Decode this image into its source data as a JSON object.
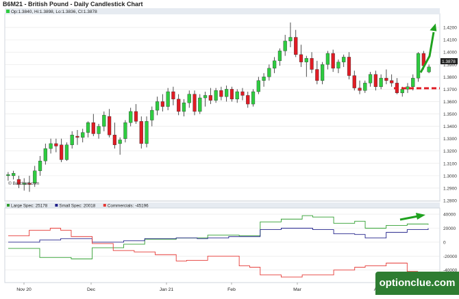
{
  "window": {
    "title": "B6M21 - British Pound - Daily Candlestick Chart"
  },
  "price_legend": "Op:1.3840, Hi:1.3898, Lo:1.3836, Cl:1.3878",
  "source_label": "© Barchart.com",
  "cot_legend": [
    {
      "label": "Large Spec: 25178",
      "color": "#2e9e2e"
    },
    {
      "label": "Small Spec: 20018",
      "color": "#20208a"
    },
    {
      "label": "Commercials: -45196",
      "color": "#e53935"
    }
  ],
  "last_price_tag": "1.3878",
  "x_axis_labels": [
    "Nov 20",
    "Dec",
    "Jan 21",
    "Feb",
    "Mar",
    "Apr"
  ],
  "watermark": "optionclue.com",
  "colors": {
    "up": "#2ecc40",
    "down": "#e01b24",
    "annotation_arrow": "#1fa21f",
    "support_line": "#e01b24"
  },
  "chart_data": [
    {
      "type": "candlestick",
      "title": "B6M21 - British Pound - Daily Candlestick Chart",
      "ylim": [
        1.28,
        1.43
      ],
      "y_ticks": [
        "1.4200",
        "1.4100",
        "1.4000",
        "1.3900",
        "1.3800",
        "1.3700",
        "1.3600",
        "1.3500",
        "1.3400",
        "1.3300",
        "1.3200",
        "1.3100",
        "1.3000",
        "1.2900",
        "1.2800"
      ],
      "last": {
        "open": 1.384,
        "high": 1.3898,
        "low": 1.3836,
        "close": 1.3878
      },
      "candles": [
        [
          1.3,
          1.303,
          1.296,
          1.301
        ],
        [
          1.3,
          1.304,
          1.297,
          1.302
        ],
        [
          1.297,
          1.3,
          1.29,
          1.293
        ],
        [
          1.293,
          1.298,
          1.288,
          1.294
        ],
        [
          1.294,
          1.3,
          1.287,
          1.293
        ],
        [
          1.294,
          1.308,
          1.291,
          1.304
        ],
        [
          1.304,
          1.316,
          1.3,
          1.312
        ],
        [
          1.312,
          1.326,
          1.309,
          1.322
        ],
        [
          1.322,
          1.33,
          1.318,
          1.326
        ],
        [
          1.326,
          1.33,
          1.319,
          1.324
        ],
        [
          1.325,
          1.33,
          1.311,
          1.313
        ],
        [
          1.313,
          1.327,
          1.312,
          1.325
        ],
        [
          1.325,
          1.336,
          1.322,
          1.333
        ],
        [
          1.332,
          1.337,
          1.325,
          1.331
        ],
        [
          1.331,
          1.338,
          1.327,
          1.335
        ],
        [
          1.335,
          1.344,
          1.331,
          1.343
        ],
        [
          1.343,
          1.35,
          1.332,
          1.334
        ],
        [
          1.334,
          1.342,
          1.33,
          1.34
        ],
        [
          1.34,
          1.352,
          1.336,
          1.349
        ],
        [
          1.348,
          1.354,
          1.331,
          1.333
        ],
        [
          1.333,
          1.343,
          1.322,
          1.325
        ],
        [
          1.326,
          1.331,
          1.317,
          1.329
        ],
        [
          1.33,
          1.345,
          1.327,
          1.343
        ],
        [
          1.343,
          1.355,
          1.34,
          1.352
        ],
        [
          1.352,
          1.358,
          1.342,
          1.344
        ],
        [
          1.344,
          1.348,
          1.322,
          1.326
        ],
        [
          1.326,
          1.348,
          1.323,
          1.344
        ],
        [
          1.345,
          1.356,
          1.34,
          1.353
        ],
        [
          1.353,
          1.364,
          1.349,
          1.36
        ],
        [
          1.36,
          1.366,
          1.352,
          1.356
        ],
        [
          1.356,
          1.371,
          1.353,
          1.368
        ],
        [
          1.368,
          1.372,
          1.357,
          1.362
        ],
        [
          1.362,
          1.366,
          1.349,
          1.352
        ],
        [
          1.352,
          1.362,
          1.348,
          1.359
        ],
        [
          1.359,
          1.369,
          1.355,
          1.366
        ],
        [
          1.366,
          1.369,
          1.349,
          1.352
        ],
        [
          1.352,
          1.366,
          1.35,
          1.363
        ],
        [
          1.363,
          1.368,
          1.356,
          1.365
        ],
        [
          1.365,
          1.371,
          1.358,
          1.361
        ],
        [
          1.361,
          1.371,
          1.359,
          1.369
        ],
        [
          1.369,
          1.372,
          1.361,
          1.364
        ],
        [
          1.364,
          1.373,
          1.36,
          1.37
        ],
        [
          1.37,
          1.372,
          1.36,
          1.362
        ],
        [
          1.362,
          1.37,
          1.359,
          1.368
        ],
        [
          1.368,
          1.371,
          1.361,
          1.365
        ],
        [
          1.365,
          1.368,
          1.355,
          1.358
        ],
        [
          1.358,
          1.37,
          1.356,
          1.368
        ],
        [
          1.368,
          1.38,
          1.366,
          1.377
        ],
        [
          1.377,
          1.383,
          1.372,
          1.38
        ],
        [
          1.38,
          1.39,
          1.377,
          1.387
        ],
        [
          1.387,
          1.396,
          1.383,
          1.393
        ],
        [
          1.393,
          1.403,
          1.389,
          1.401
        ],
        [
          1.401,
          1.414,
          1.397,
          1.409
        ],
        [
          1.409,
          1.424,
          1.404,
          1.412
        ],
        [
          1.412,
          1.418,
          1.396,
          1.398
        ],
        [
          1.398,
          1.406,
          1.388,
          1.392
        ],
        [
          1.392,
          1.397,
          1.38,
          1.395
        ],
        [
          1.395,
          1.4,
          1.383,
          1.386
        ],
        [
          1.386,
          1.393,
          1.374,
          1.377
        ],
        [
          1.377,
          1.392,
          1.374,
          1.39
        ],
        [
          1.39,
          1.401,
          1.386,
          1.399
        ],
        [
          1.399,
          1.402,
          1.384,
          1.387
        ],
        [
          1.387,
          1.394,
          1.383,
          1.392
        ],
        [
          1.392,
          1.398,
          1.388,
          1.396
        ],
        [
          1.396,
          1.4,
          1.378,
          1.381
        ],
        [
          1.381,
          1.385,
          1.369,
          1.371
        ],
        [
          1.371,
          1.377,
          1.366,
          1.369
        ],
        [
          1.369,
          1.377,
          1.367,
          1.375
        ],
        [
          1.375,
          1.384,
          1.372,
          1.382
        ],
        [
          1.382,
          1.385,
          1.369,
          1.372
        ],
        [
          1.372,
          1.382,
          1.37,
          1.379
        ],
        [
          1.379,
          1.386,
          1.374,
          1.377
        ],
        [
          1.377,
          1.382,
          1.372,
          1.375
        ],
        [
          1.375,
          1.379,
          1.366,
          1.367
        ],
        [
          1.367,
          1.372,
          1.364,
          1.37
        ],
        [
          1.37,
          1.375,
          1.367,
          1.372
        ],
        [
          1.372,
          1.382,
          1.369,
          1.379
        ],
        [
          1.379,
          1.4,
          1.376,
          1.399
        ],
        [
          1.399,
          1.401,
          1.386,
          1.389
        ],
        [
          1.384,
          1.39,
          1.383,
          1.388
        ]
      ]
    },
    {
      "type": "line",
      "ylabel": "",
      "ylim": [
        -55000,
        45000
      ],
      "y_ticks": [
        "40000",
        "20000",
        "0",
        "-20000",
        "-40000"
      ],
      "series": [
        {
          "name": "Large Spec",
          "color": "#2e9e2e",
          "values": [
            -9000,
            -9000,
            -9000,
            -22000,
            -22000,
            -22000,
            -24000,
            -24000,
            -8000,
            -8000,
            -8000,
            -3000,
            -3000,
            4000,
            4000,
            4000,
            6000,
            6000,
            6000,
            10000,
            10000,
            10000,
            9000,
            9000,
            29000,
            29000,
            33000,
            33000,
            38000,
            36000,
            36000,
            27000,
            27000,
            30000,
            20000,
            20000,
            24000,
            24000,
            26000,
            26000,
            25000
          ]
        },
        {
          "name": "Small Spec",
          "color": "#20208a",
          "values": [
            0,
            0,
            0,
            3000,
            3000,
            5000,
            5000,
            5000,
            0,
            0,
            0,
            2000,
            2000,
            5000,
            5000,
            5000,
            6000,
            6000,
            5000,
            6000,
            6000,
            8000,
            8000,
            8000,
            18000,
            18000,
            20000,
            20000,
            20000,
            18000,
            18000,
            12000,
            12000,
            11000,
            6000,
            6000,
            14000,
            14000,
            18000,
            18000,
            20000
          ]
        },
        {
          "name": "Commercials",
          "color": "#e53935",
          "values": [
            9000,
            9000,
            17000,
            17000,
            20000,
            17000,
            8000,
            8000,
            -2000,
            -2000,
            -12000,
            -12000,
            -14000,
            -14000,
            -18000,
            -18000,
            -27000,
            -26000,
            -26000,
            -20000,
            -20000,
            -20000,
            -34000,
            -36000,
            -47000,
            -47000,
            -50000,
            -50000,
            -47000,
            -47000,
            -47000,
            -40000,
            -40000,
            -36000,
            -34000,
            -34000,
            -30000,
            -30000,
            -42000,
            -45000,
            -45000
          ]
        }
      ]
    }
  ]
}
